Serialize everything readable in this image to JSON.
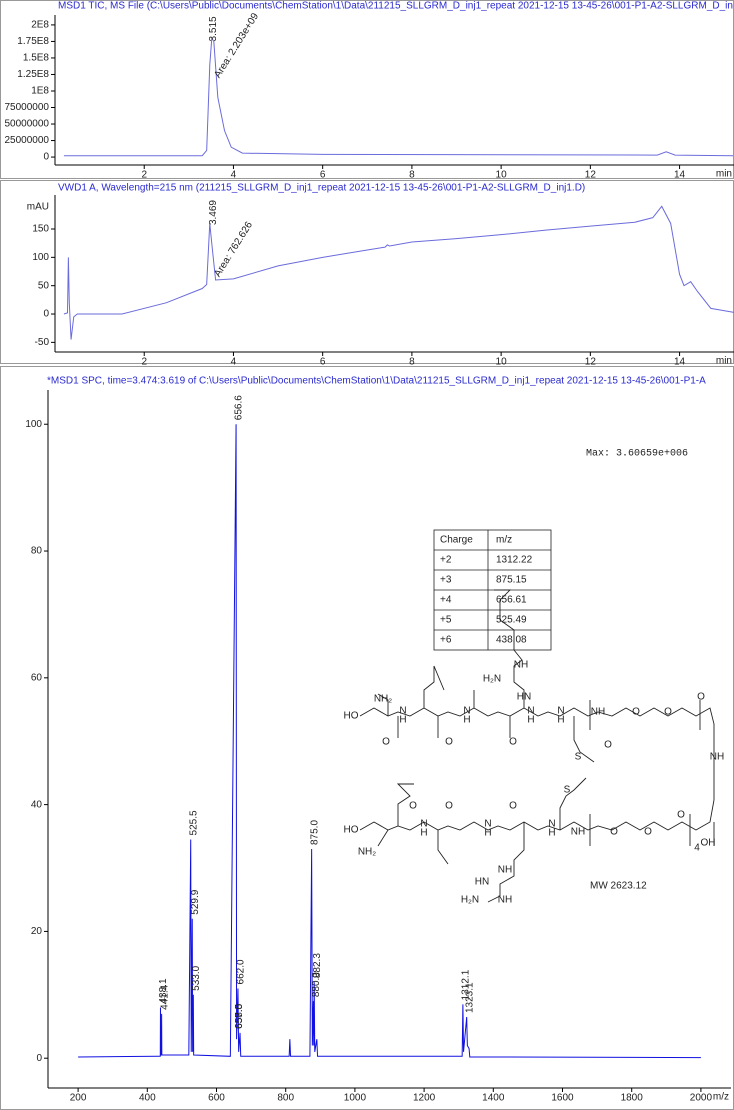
{
  "chart_data": [
    {
      "type": "line",
      "title": "MSD1 TIC, MS File (C:\\Users\\Public\\Documents\\ChemStation\\1\\Data\\211215_SLLGRM_D_inj1_repeat 2021-12-15 13-45-26\\001-P1-A2-SLLGRM_D_in",
      "x": [
        0.2,
        3.3,
        3.4,
        3.47,
        3.515,
        3.56,
        3.65,
        3.8,
        3.95,
        4.2,
        6,
        13.5,
        13.7,
        13.9,
        15.2
      ],
      "values": [
        2000000,
        2000000,
        10000000,
        140000000,
        180000000,
        175000000,
        90000000,
        40000000,
        15000000,
        6000000,
        4000000,
        3000000,
        8000000,
        3000000,
        2000000
      ],
      "color": "#6b6bdc",
      "xlim": [
        0,
        15.22
      ],
      "xticks": [
        2,
        4,
        6,
        8,
        10,
        12,
        14
      ],
      "xlabel": "min",
      "ylim": [
        -12000000,
        215000000
      ],
      "yticks": [
        0,
        25000000,
        50000000,
        75000000,
        {
          "value": 100000000,
          "label": "1E8"
        },
        {
          "value": 125000000,
          "label": "1.25E8"
        },
        {
          "value": 150000000,
          "label": "1.5E8"
        },
        {
          "value": 175000000,
          "label": "1.75E8"
        },
        {
          "value": 200000000,
          "label": "2E8"
        }
      ],
      "annotations": [
        {
          "x": 3.55,
          "y": 175000000,
          "text": "3.515"
        },
        {
          "x": 3.63,
          "y": 121000000,
          "text": "Area: 2.203e+09"
        }
      ]
    },
    {
      "type": "line",
      "title": "VWD1 A, Wavelength=215 nm (211215_SLLGRM_D_inj1_repeat 2021-12-15 13-45-26\\001-P1-A2-SLLGRM_D_inj1.D)",
      "x": [
        0.2,
        0.28,
        0.3,
        0.32,
        0.36,
        0.42,
        0.5,
        1.5,
        2.5,
        3.3,
        3.4,
        3.469,
        3.52,
        3.6,
        4,
        5,
        6,
        7,
        7.4,
        7.45,
        7.5,
        8,
        9,
        10,
        11,
        12,
        13,
        13.4,
        13.6,
        13.8,
        14,
        14.1,
        14.25,
        14.4,
        14.7,
        15.22
      ],
      "values": [
        0,
        2,
        100,
        20,
        -45,
        -5,
        0,
        0,
        20,
        45,
        52,
        160,
        120,
        60,
        62,
        85,
        100,
        113,
        118,
        122,
        120,
        127,
        133,
        140,
        148,
        155,
        162,
        170,
        190,
        160,
        70,
        50,
        57,
        40,
        10,
        3
      ],
      "color": "#6b6bdc",
      "xlim": [
        0,
        15.22
      ],
      "xticks": [
        2,
        4,
        6,
        8,
        10,
        12,
        14
      ],
      "xlabel": "min",
      "ylim": [
        -67,
        210
      ],
      "yticks": [
        -50,
        0,
        50,
        100,
        150
      ],
      "ylabel": "mAU",
      "annotations": [
        {
          "x": 3.55,
          "y": 157,
          "text": "3.469"
        },
        {
          "x": 3.63,
          "y": 67,
          "text": "Area: 762.626"
        }
      ]
    },
    {
      "type": "line",
      "title": "*MSD1 SPC, time=3.474:3.619 of C:\\Users\\Public\\Documents\\ChemStation\\1\\Data\\211215_SLLGRM_D_inj1_repeat 2021-12-15 13-45-26\\001-P1-A",
      "x": [
        200,
        430,
        437.5,
        438.1,
        438.8,
        441,
        441.4,
        442,
        520,
        525.5,
        527,
        529.9,
        531,
        533,
        534,
        640,
        656.6,
        658,
        662,
        664,
        668,
        670,
        810,
        812,
        814,
        870,
        875,
        877,
        880,
        881,
        882.3,
        884,
        890,
        892,
        1310,
        1312.1,
        1314,
        1323.1,
        1325,
        1330,
        1332,
        1400,
        2000
      ],
      "values": [
        0.2,
        0.3,
        0.3,
        8,
        0.5,
        0.5,
        7,
        0.5,
        0.5,
        34.5,
        1,
        22,
        1,
        10,
        0.5,
        0.3,
        100,
        3,
        11,
        1,
        4,
        0.3,
        0.3,
        3,
        0.3,
        0.3,
        33,
        2,
        9,
        2,
        12,
        1,
        3,
        0.3,
        0.3,
        8.5,
        1,
        6.5,
        2,
        1.5,
        0.2,
        0.2,
        0.1
      ],
      "color": "#1010e0",
      "xlim": [
        113,
        2087
      ],
      "xticks": [
        200,
        400,
        600,
        800,
        1000,
        1200,
        1400,
        1600,
        1800,
        2000
      ],
      "xlabel": "m/z",
      "ylim": [
        -4.7,
        105.4
      ],
      "yticks": [
        0,
        20,
        40,
        60,
        80,
        100
      ],
      "annotations": [
        {
          "x": 438.1,
          "y": 8,
          "text": "438.1"
        },
        {
          "x": 441.4,
          "y": 7,
          "text": "441.4"
        },
        {
          "x": 525.5,
          "y": 34.5,
          "text": "525.5"
        },
        {
          "x": 529.9,
          "y": 22,
          "text": "529.9"
        },
        {
          "x": 533,
          "y": 10,
          "text": "533.0"
        },
        {
          "x": 656.6,
          "y": 100,
          "text": "656.6"
        },
        {
          "x": 662,
          "y": 11,
          "text": "662.0"
        },
        {
          "x": 657.5,
          "y": 4,
          "text": "657.5"
        },
        {
          "x": 658,
          "y": 4,
          "text": "658.0"
        },
        {
          "x": 875,
          "y": 33,
          "text": "875.0"
        },
        {
          "x": 880,
          "y": 9,
          "text": "880.0"
        },
        {
          "x": 882.3,
          "y": 12,
          "text": "882.3"
        },
        {
          "x": 1312.1,
          "y": 8.5,
          "text": "1312.1"
        },
        {
          "x": 1323.1,
          "y": 6.5,
          "text": "1323.1"
        }
      ],
      "max_label": "Max: 3.60659e+006",
      "mw_label": "MW 2623.12",
      "table": {
        "header": [
          "Charge",
          "m/z"
        ],
        "rows": [
          [
            "+2",
            "1312.22"
          ],
          [
            "+3",
            "875.15"
          ],
          [
            "+4",
            "656.61"
          ],
          [
            "+5",
            "525.49"
          ],
          [
            "+6",
            "438.08"
          ]
        ]
      },
      "structure_labels": [
        "H₂N",
        "NH",
        "HN",
        "NH₂",
        "HO",
        "N",
        "H",
        "N",
        "H",
        "N",
        "H",
        "N",
        "H",
        "NH",
        "O",
        "O",
        "O",
        "NH",
        "O",
        "O",
        "O",
        "O",
        "S",
        "HO",
        "NH₂",
        "N",
        "H",
        "N",
        "H",
        "N",
        "H",
        "NH",
        "O",
        "O",
        "O",
        "4",
        "O",
        "O",
        "O",
        "S",
        "OH",
        "HN",
        "NH",
        "H₂N",
        "NH"
      ]
    }
  ]
}
